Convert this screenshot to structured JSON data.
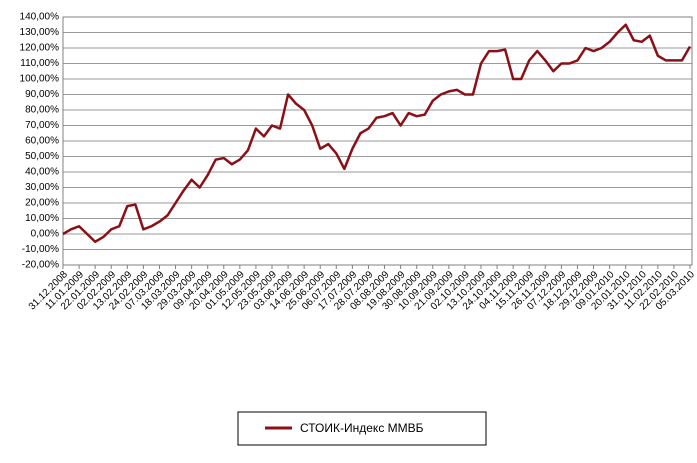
{
  "chart_data": {
    "type": "line",
    "categories": [
      "31.12.2008",
      null,
      "11.01.2009",
      null,
      "22.01.2009",
      null,
      "02.02.2009",
      null,
      "13.02.2009",
      null,
      "24.02.2009",
      null,
      "07.03.2009",
      null,
      "18.03.2009",
      null,
      "29.03.2009",
      null,
      "09.04.2009",
      null,
      "20.04.2009",
      null,
      "01.05.2009",
      null,
      "12.05.2009",
      null,
      "23.05.2009",
      null,
      "03.06.2009",
      null,
      "14.06.2009",
      null,
      "25.06.2009",
      null,
      "06.07.2009",
      null,
      "17.07.2009",
      null,
      "28.07.2009",
      null,
      "08.08.2009",
      null,
      "19.08.2009",
      null,
      "30.08.2009",
      null,
      "10.09.2009",
      null,
      "21.09.2009",
      null,
      "02.10.2009",
      null,
      "13.10.2009",
      null,
      "24.10.2009",
      null,
      "04.11.2009",
      null,
      "15.11.2009",
      null,
      "26.11.2009",
      null,
      "07.12.2009",
      null,
      "18.12.2009",
      null,
      "29.12.2009",
      null,
      "09.01.2010",
      null,
      "20.01.2010",
      null,
      "31.01.2010",
      null,
      "11.02.2010",
      null,
      "22.02.2010",
      null,
      "05.03.2010"
    ],
    "series": [
      {
        "name": "СТОИК-Индекс ММВБ",
        "color": "#8b1016",
        "values": [
          0,
          3,
          5,
          0,
          -5,
          -2,
          3,
          5,
          18,
          19,
          3,
          5,
          8,
          12,
          20,
          28,
          35,
          30,
          38,
          48,
          49,
          45,
          48,
          54,
          68,
          63,
          70,
          68,
          90,
          84,
          80,
          70,
          55,
          58,
          52,
          42,
          55,
          65,
          68,
          75,
          76,
          78,
          70,
          78,
          76,
          77,
          86,
          90,
          92,
          93,
          90,
          90,
          110,
          118,
          118,
          119,
          100,
          100,
          112,
          118,
          112,
          105,
          110,
          110,
          112,
          120,
          118,
          120,
          124,
          130,
          135,
          125,
          124,
          128,
          115,
          112,
          112,
          112,
          121
        ]
      }
    ],
    "ylim": [
      -20,
      140
    ],
    "yticks": [
      {
        "value": -20,
        "label": "-20,00%"
      },
      {
        "value": -10,
        "label": "-10,00%"
      },
      {
        "value": 0,
        "label": "0,00%"
      },
      {
        "value": 10,
        "label": "10,00%"
      },
      {
        "value": 20,
        "label": "20,00%"
      },
      {
        "value": 30,
        "label": "30,00%"
      },
      {
        "value": 40,
        "label": "40,00%"
      },
      {
        "value": 50,
        "label": "50,00%"
      },
      {
        "value": 60,
        "label": "60,00%"
      },
      {
        "value": 70,
        "label": "70,00%"
      },
      {
        "value": 80,
        "label": "80,00%"
      },
      {
        "value": 90,
        "label": "90,00%"
      },
      {
        "value": 100,
        "label": "100,00%"
      },
      {
        "value": 110,
        "label": "110,00%"
      },
      {
        "value": 120,
        "label": "120,00%"
      },
      {
        "value": 130,
        "label": "130,00%"
      },
      {
        "value": 140,
        "label": "140,00%"
      }
    ],
    "grid": true,
    "legend": "bottom"
  }
}
